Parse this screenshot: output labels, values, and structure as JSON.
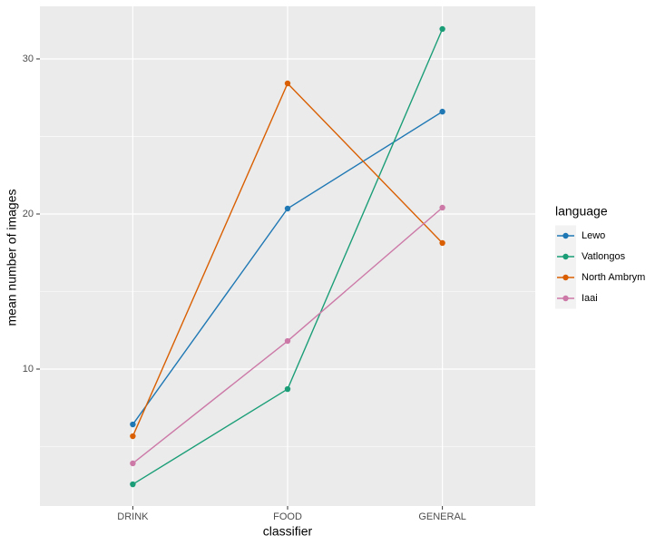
{
  "chart_data": {
    "type": "line",
    "x_label": "classifier",
    "y_label": "mean number of images",
    "categories": [
      "DRINK",
      "FOOD",
      "GENERAL"
    ],
    "series": [
      {
        "name": "Lewo",
        "color": "#1f78b4",
        "values": [
          6.43,
          20.35,
          26.6
        ]
      },
      {
        "name": "Vatlongos",
        "color": "#1b9e77",
        "values": [
          2.57,
          8.71,
          31.93
        ]
      },
      {
        "name": "North Ambrym",
        "color": "#d95f02",
        "values": [
          5.67,
          28.42,
          18.13
        ]
      },
      {
        "name": "Iaai",
        "color": "#cc79a7",
        "values": [
          3.92,
          11.81,
          20.41
        ]
      }
    ],
    "legend_title": "language",
    "legend_position": "right",
    "ylim": [
      1.17,
      33.39
    ],
    "yticks": [
      10,
      20,
      30
    ],
    "minor_yticks": [
      5,
      15,
      25
    ],
    "grid": true
  }
}
